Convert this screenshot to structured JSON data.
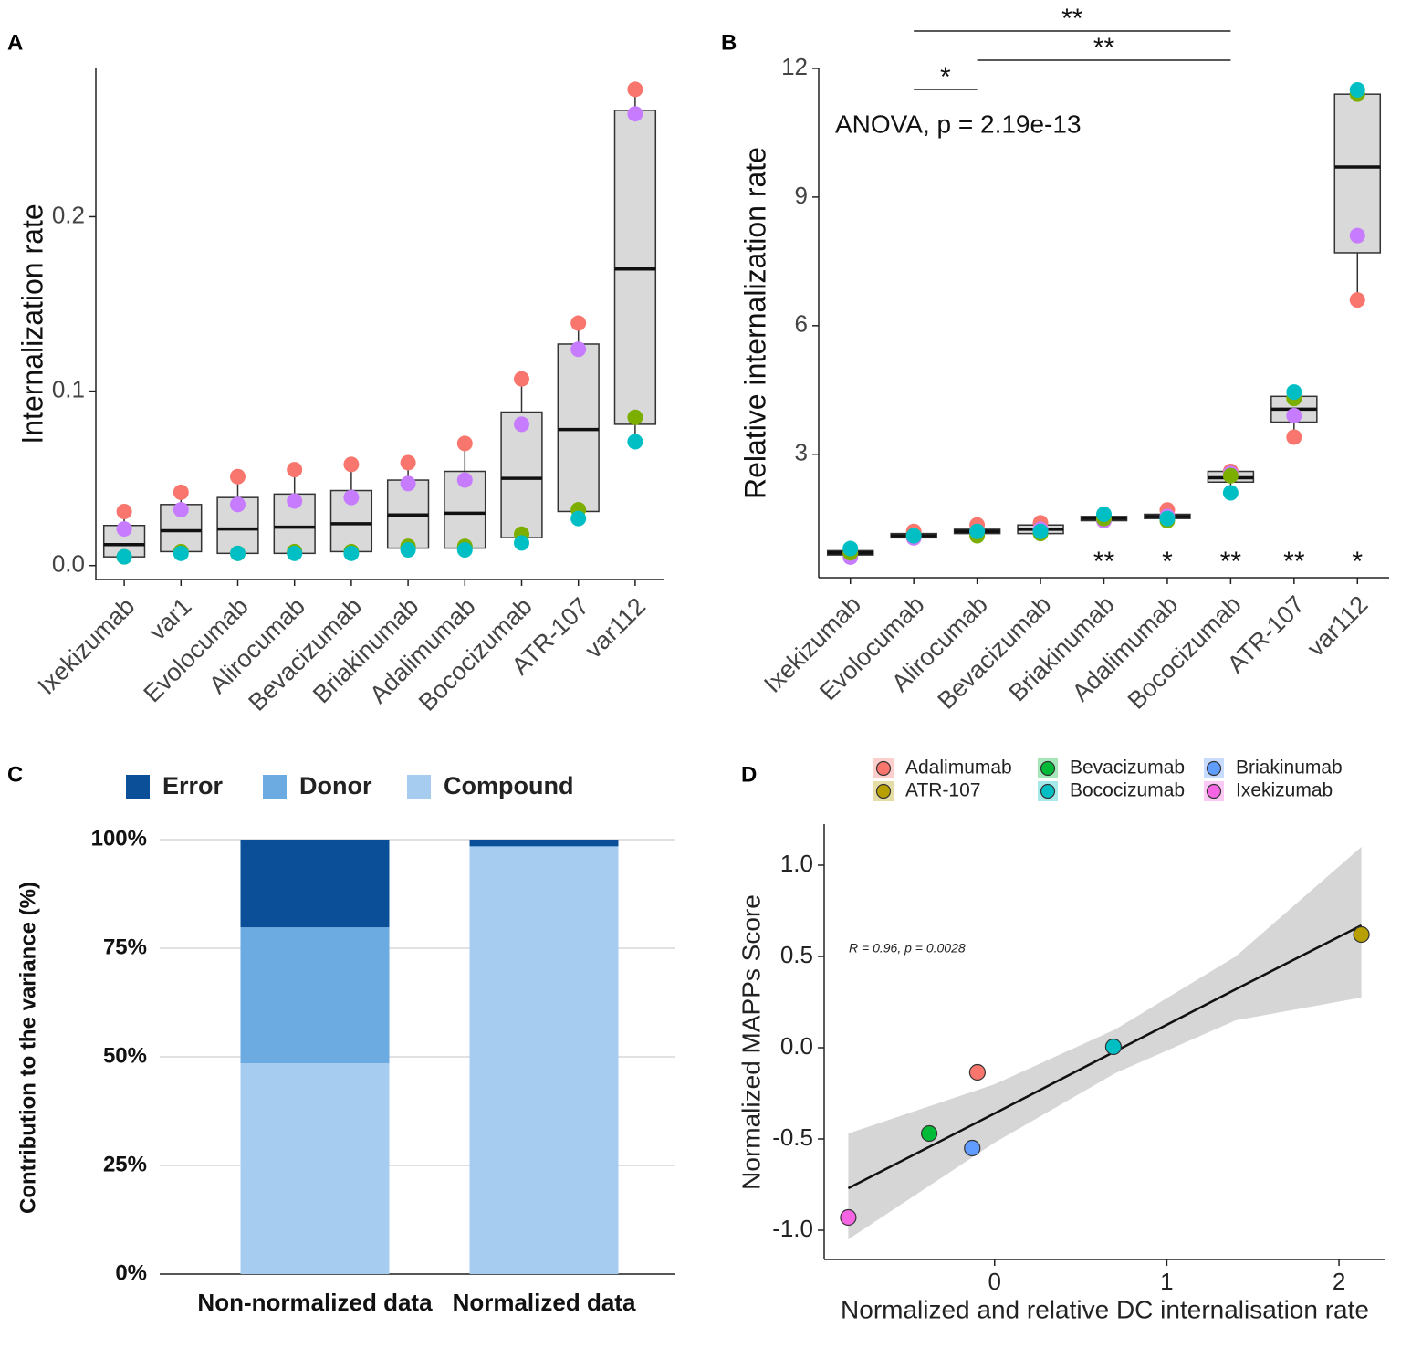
{
  "chart_data": [
    {
      "type": "box",
      "panel_label": "A",
      "y_label": "Internalization rate",
      "categories": [
        "Ixekizumab",
        "var1",
        "Evolocumab",
        "Alirocumab",
        "Bevacizumab",
        "Briakinumab",
        "Adalimumab",
        "Bococizumab",
        "ATR-107",
        "var112"
      ],
      "q1": [
        0.005,
        0.008,
        0.007,
        0.007,
        0.008,
        0.01,
        0.01,
        0.016,
        0.031,
        0.081
      ],
      "median": [
        0.012,
        0.02,
        0.021,
        0.022,
        0.024,
        0.029,
        0.03,
        0.05,
        0.078,
        0.17
      ],
      "q3": [
        0.023,
        0.035,
        0.039,
        0.041,
        0.043,
        0.049,
        0.054,
        0.088,
        0.127,
        0.261
      ],
      "points": [
        {
          "color": "#f8766d",
          "values": [
            0.031,
            0.042,
            0.051,
            0.055,
            0.058,
            0.059,
            0.07,
            0.107,
            0.139,
            0.273
          ]
        },
        {
          "color": "#c77cff",
          "values": [
            0.021,
            0.032,
            0.035,
            0.037,
            0.039,
            0.047,
            0.049,
            0.081,
            0.124,
            0.259
          ]
        },
        {
          "color": "#7cae00",
          "values": [
            0.005,
            0.008,
            0.007,
            0.008,
            0.008,
            0.011,
            0.011,
            0.018,
            0.032,
            0.085
          ]
        },
        {
          "color": "#00bfc4",
          "values": [
            0.005,
            0.007,
            0.007,
            0.007,
            0.007,
            0.009,
            0.009,
            0.013,
            0.027,
            0.071
          ]
        }
      ],
      "box_color": "#d9d9d9",
      "ylim": [
        -0.008,
        0.285
      ],
      "yticks": [
        {
          "value": 0,
          "label": "0.0"
        },
        0.1,
        0.2
      ]
    },
    {
      "type": "box",
      "panel_label": "B",
      "y_label": "Relative internalization rate",
      "annotation": "ANOVA, p = 2.19e-13",
      "categories": [
        "Ixekizumab",
        "Evolocumab",
        "Alirocumab",
        "Bevacizumab",
        "Briakinumab",
        "Adalimumab",
        "Bococizumab",
        "ATR-107",
        "var112"
      ],
      "q1": [
        0.65,
        1.05,
        1.15,
        1.15,
        1.45,
        1.5,
        2.35,
        3.75,
        7.7
      ],
      "median": [
        0.7,
        1.1,
        1.2,
        1.25,
        1.5,
        1.55,
        2.45,
        4.05,
        9.7
      ],
      "q3": [
        0.75,
        1.15,
        1.25,
        1.35,
        1.55,
        1.6,
        2.6,
        4.35,
        11.4
      ],
      "points": [
        {
          "color": "#f8766d",
          "values": [
            0.7,
            1.2,
            1.35,
            1.4,
            1.45,
            1.7,
            2.6,
            3.4,
            6.6
          ]
        },
        {
          "color": "#c77cff",
          "values": [
            0.6,
            1.05,
            1.2,
            1.25,
            1.45,
            1.55,
            2.55,
            3.9,
            8.1
          ]
        },
        {
          "color": "#7cae00",
          "values": [
            0.7,
            1.1,
            1.1,
            1.15,
            1.5,
            1.45,
            2.5,
            4.3,
            11.4
          ]
        },
        {
          "color": "#00bfc4",
          "values": [
            0.8,
            1.1,
            1.2,
            1.2,
            1.6,
            1.5,
            2.1,
            4.45,
            11.5
          ]
        }
      ],
      "significance": [
        null,
        null,
        null,
        null,
        "**",
        "*",
        "**",
        "**",
        "*"
      ],
      "comparisons": [
        {
          "from": "Evolocumab",
          "to": "Alirocumab",
          "label": "*"
        },
        {
          "from": "Alirocumab",
          "to": "Bococizumab",
          "label": "**"
        },
        {
          "from": "Evolocumab",
          "to": "Bococizumab",
          "label": "**"
        }
      ],
      "box_color": "#d9d9d9",
      "ylim": [
        0.12,
        12
      ],
      "yticks": [
        3,
        6,
        9,
        12
      ]
    },
    {
      "type": "stacked_bar",
      "panel_label": "C",
      "y_label": "Contribution to the variance (%)",
      "categories": [
        "Non-normalized data",
        "Normalized data"
      ],
      "series": [
        {
          "name": "Error",
          "color": "#0b4f98",
          "values": [
            20.2,
            1.5
          ]
        },
        {
          "name": "Donor",
          "color": "#6caae2",
          "values": [
            31.3,
            0.2
          ]
        },
        {
          "name": "Compound",
          "color": "#a6ccf0",
          "values": [
            48.5,
            98.3
          ]
        }
      ],
      "ylim": [
        0,
        100
      ],
      "yticks": [
        {
          "value": 0,
          "label": "0%"
        },
        {
          "value": 25,
          "label": "25%"
        },
        {
          "value": 50,
          "label": "50%"
        },
        {
          "value": 75,
          "label": "75%"
        },
        {
          "value": 100,
          "label": "100%"
        }
      ],
      "grid": true
    },
    {
      "type": "scatter",
      "panel_label": "D",
      "x_label": "Normalized and relative DC internalisation rate",
      "y_label": "Normalized MAPPs Score",
      "annotation": "R = 0.96, p = 0.0028",
      "series": [
        {
          "name": "Adalimumab",
          "color": "#f8766d",
          "x": [
            -0.1
          ],
          "values": [
            -0.135
          ]
        },
        {
          "name": "ATR-107",
          "color": "#b79f00",
          "x": [
            2.13
          ],
          "values": [
            0.62
          ]
        },
        {
          "name": "Bevacizumab",
          "color": "#00ba38",
          "x": [
            -0.38
          ],
          "values": [
            -0.47
          ]
        },
        {
          "name": "Bococizumab",
          "color": "#00bfc4",
          "x": [
            0.69
          ],
          "values": [
            0.005
          ]
        },
        {
          "name": "Briakinumab",
          "color": "#619cff",
          "x": [
            -0.13
          ],
          "values": [
            -0.55
          ]
        },
        {
          "name": "Ixekizumab",
          "color": "#f564e3",
          "x": [
            -0.85
          ],
          "values": [
            -0.93
          ]
        }
      ],
      "fit": {
        "x": [
          -0.85,
          0,
          0.7,
          1.4,
          2.13
        ],
        "y": [
          -0.77,
          -0.36,
          -0.02,
          0.32,
          0.67
        ],
        "lower": [
          -1.05,
          -0.52,
          -0.14,
          0.15,
          0.275
        ],
        "upper": [
          -0.47,
          -0.2,
          0.1,
          0.5,
          1.1
        ]
      },
      "xlim": [
        -0.99,
        2.27
      ],
      "ylim": [
        -1.16,
        1.225
      ],
      "xticks": [
        0,
        1,
        2
      ],
      "yticks": [
        {
          "value": -1,
          "label": "-1.0"
        },
        -0.5,
        {
          "value": 0,
          "label": "0.0"
        },
        0.5,
        {
          "value": 1,
          "label": "1.0"
        }
      ]
    }
  ]
}
